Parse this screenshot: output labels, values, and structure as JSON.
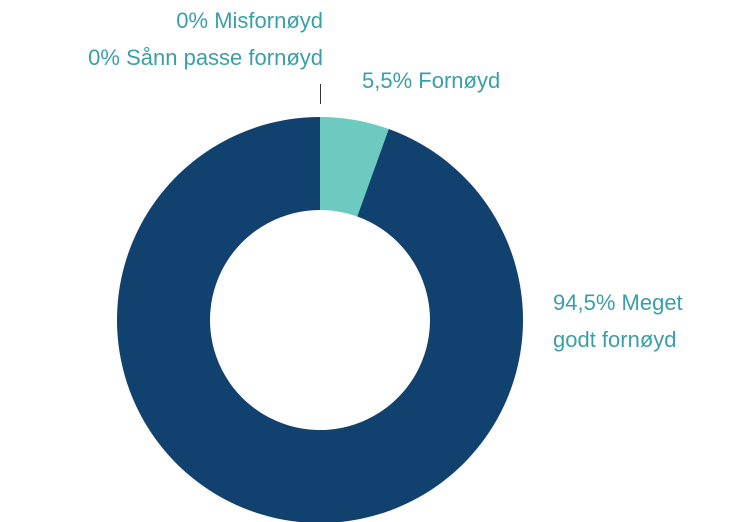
{
  "chart_data": {
    "type": "donut",
    "categories": [
      "Misfornøyd",
      "Sånn passe fornøyd",
      "Fornøyd",
      "Meget godt fornøyd"
    ],
    "values": [
      0,
      0,
      5.5,
      94.5
    ],
    "value_labels": [
      "0%",
      "0%",
      "5,5%",
      "94,5%"
    ],
    "colors": [
      "#a6d9d4",
      "#3a9fa8",
      "#6ccac0",
      "#11416f"
    ]
  }
}
